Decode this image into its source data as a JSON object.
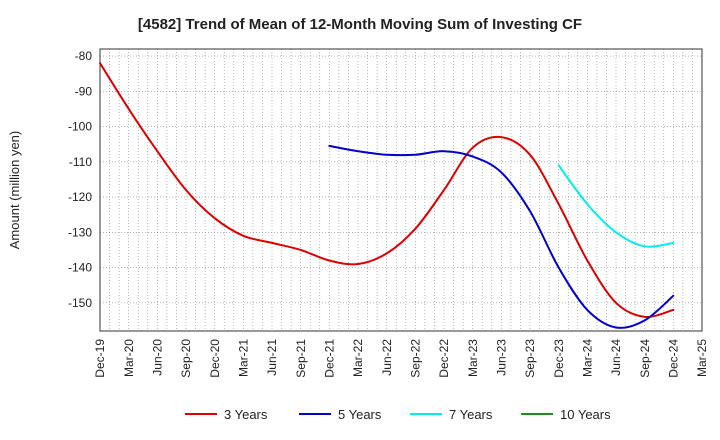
{
  "chart_data": {
    "type": "line",
    "title": "[4582]  Trend of Mean of 12-Month Moving Sum of Investing CF",
    "xlabel": "",
    "ylabel": "Amount (million yen)",
    "ylim": [
      -158,
      -78
    ],
    "yticks": [
      -80,
      -90,
      -100,
      -110,
      -120,
      -130,
      -140,
      -150
    ],
    "categories": [
      "Dec-19",
      "Mar-20",
      "Jun-20",
      "Sep-20",
      "Dec-20",
      "Mar-21",
      "Jun-21",
      "Sep-21",
      "Dec-21",
      "Mar-22",
      "Jun-22",
      "Sep-22",
      "Dec-22",
      "Mar-23",
      "Jun-23",
      "Sep-23",
      "Dec-23",
      "Mar-24",
      "Jun-24",
      "Sep-24",
      "Dec-24",
      "Mar-25"
    ],
    "grid": true,
    "legend_position": "bottom",
    "series": [
      {
        "name": "3 Years",
        "color": "#dd0000",
        "values": [
          -82,
          -95,
          -107,
          -118,
          -126,
          -131,
          -133,
          -135,
          -138,
          -139,
          -136,
          -129,
          -118,
          -106,
          -103,
          -108,
          -122,
          -138,
          -150,
          -154,
          -152,
          null
        ]
      },
      {
        "name": "5 Years",
        "color": "#0000cc",
        "values": [
          null,
          null,
          null,
          null,
          null,
          null,
          null,
          null,
          -105.5,
          -107,
          -108,
          -108,
          -107,
          -108.5,
          -113,
          -124,
          -140,
          -152,
          -157,
          -155,
          -148,
          null
        ]
      },
      {
        "name": "7 Years",
        "color": "#00eeee",
        "values": [
          null,
          null,
          null,
          null,
          null,
          null,
          null,
          null,
          null,
          null,
          null,
          null,
          null,
          null,
          null,
          null,
          -111,
          -122,
          -130,
          -134,
          -133,
          null
        ]
      },
      {
        "name": "10 Years",
        "color": "#228b22",
        "values": [
          null,
          null,
          null,
          null,
          null,
          null,
          null,
          null,
          null,
          null,
          null,
          null,
          null,
          null,
          null,
          null,
          null,
          null,
          null,
          null,
          null,
          null
        ]
      }
    ]
  }
}
